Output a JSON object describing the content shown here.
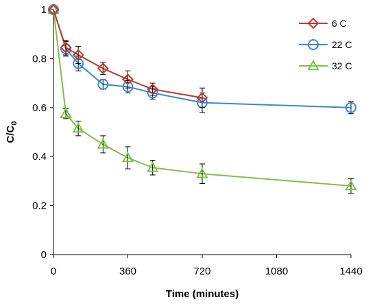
{
  "chart_data": {
    "type": "line",
    "title": "",
    "xlabel": "Time (minutes)",
    "ylabel": {
      "main": "C/C",
      "subscript": "0"
    },
    "xlim": [
      0,
      1440
    ],
    "ylim": [
      0,
      1
    ],
    "xticks": [
      0,
      360,
      720,
      1080,
      1440
    ],
    "yticks": [
      0,
      0.2,
      0.4,
      0.6,
      0.8,
      1
    ],
    "ytick_labels": [
      "0",
      "0.2",
      "0.4",
      "0.6",
      "0.8",
      "1"
    ],
    "grid": false,
    "legend_position": "top-right",
    "series": [
      {
        "name": "6 C",
        "color": "#c0392b",
        "marker": "diamond",
        "points": [
          {
            "x": 0,
            "y": 1.0,
            "err": 0.0
          },
          {
            "x": 60,
            "y": 0.845,
            "err": 0.03
          },
          {
            "x": 120,
            "y": 0.815,
            "err": 0.035
          },
          {
            "x": 240,
            "y": 0.76,
            "err": 0.025
          },
          {
            "x": 360,
            "y": 0.715,
            "err": 0.035
          },
          {
            "x": 480,
            "y": 0.675,
            "err": 0.025
          },
          {
            "x": 720,
            "y": 0.64,
            "err": 0.04
          }
        ]
      },
      {
        "name": "22 C",
        "color": "#3a88d8",
        "marker": "circle",
        "points": [
          {
            "x": 0,
            "y": 1.0,
            "err": 0.0
          },
          {
            "x": 60,
            "y": 0.84,
            "err": 0.03
          },
          {
            "x": 120,
            "y": 0.78,
            "err": 0.03
          },
          {
            "x": 240,
            "y": 0.695,
            "err": 0.02
          },
          {
            "x": 360,
            "y": 0.685,
            "err": 0.025
          },
          {
            "x": 480,
            "y": 0.66,
            "err": 0.025
          },
          {
            "x": 720,
            "y": 0.62,
            "err": 0.04
          },
          {
            "x": 1440,
            "y": 0.6,
            "err": 0.025
          }
        ]
      },
      {
        "name": "32 C",
        "color": "#7dc242",
        "marker": "triangle",
        "points": [
          {
            "x": 0,
            "y": 1.0,
            "err": 0.0
          },
          {
            "x": 60,
            "y": 0.575,
            "err": 0.02
          },
          {
            "x": 120,
            "y": 0.515,
            "err": 0.03
          },
          {
            "x": 240,
            "y": 0.45,
            "err": 0.035
          },
          {
            "x": 360,
            "y": 0.395,
            "err": 0.045
          },
          {
            "x": 480,
            "y": 0.355,
            "err": 0.03
          },
          {
            "x": 720,
            "y": 0.33,
            "err": 0.04
          },
          {
            "x": 1440,
            "y": 0.28,
            "err": 0.03
          }
        ]
      }
    ]
  }
}
